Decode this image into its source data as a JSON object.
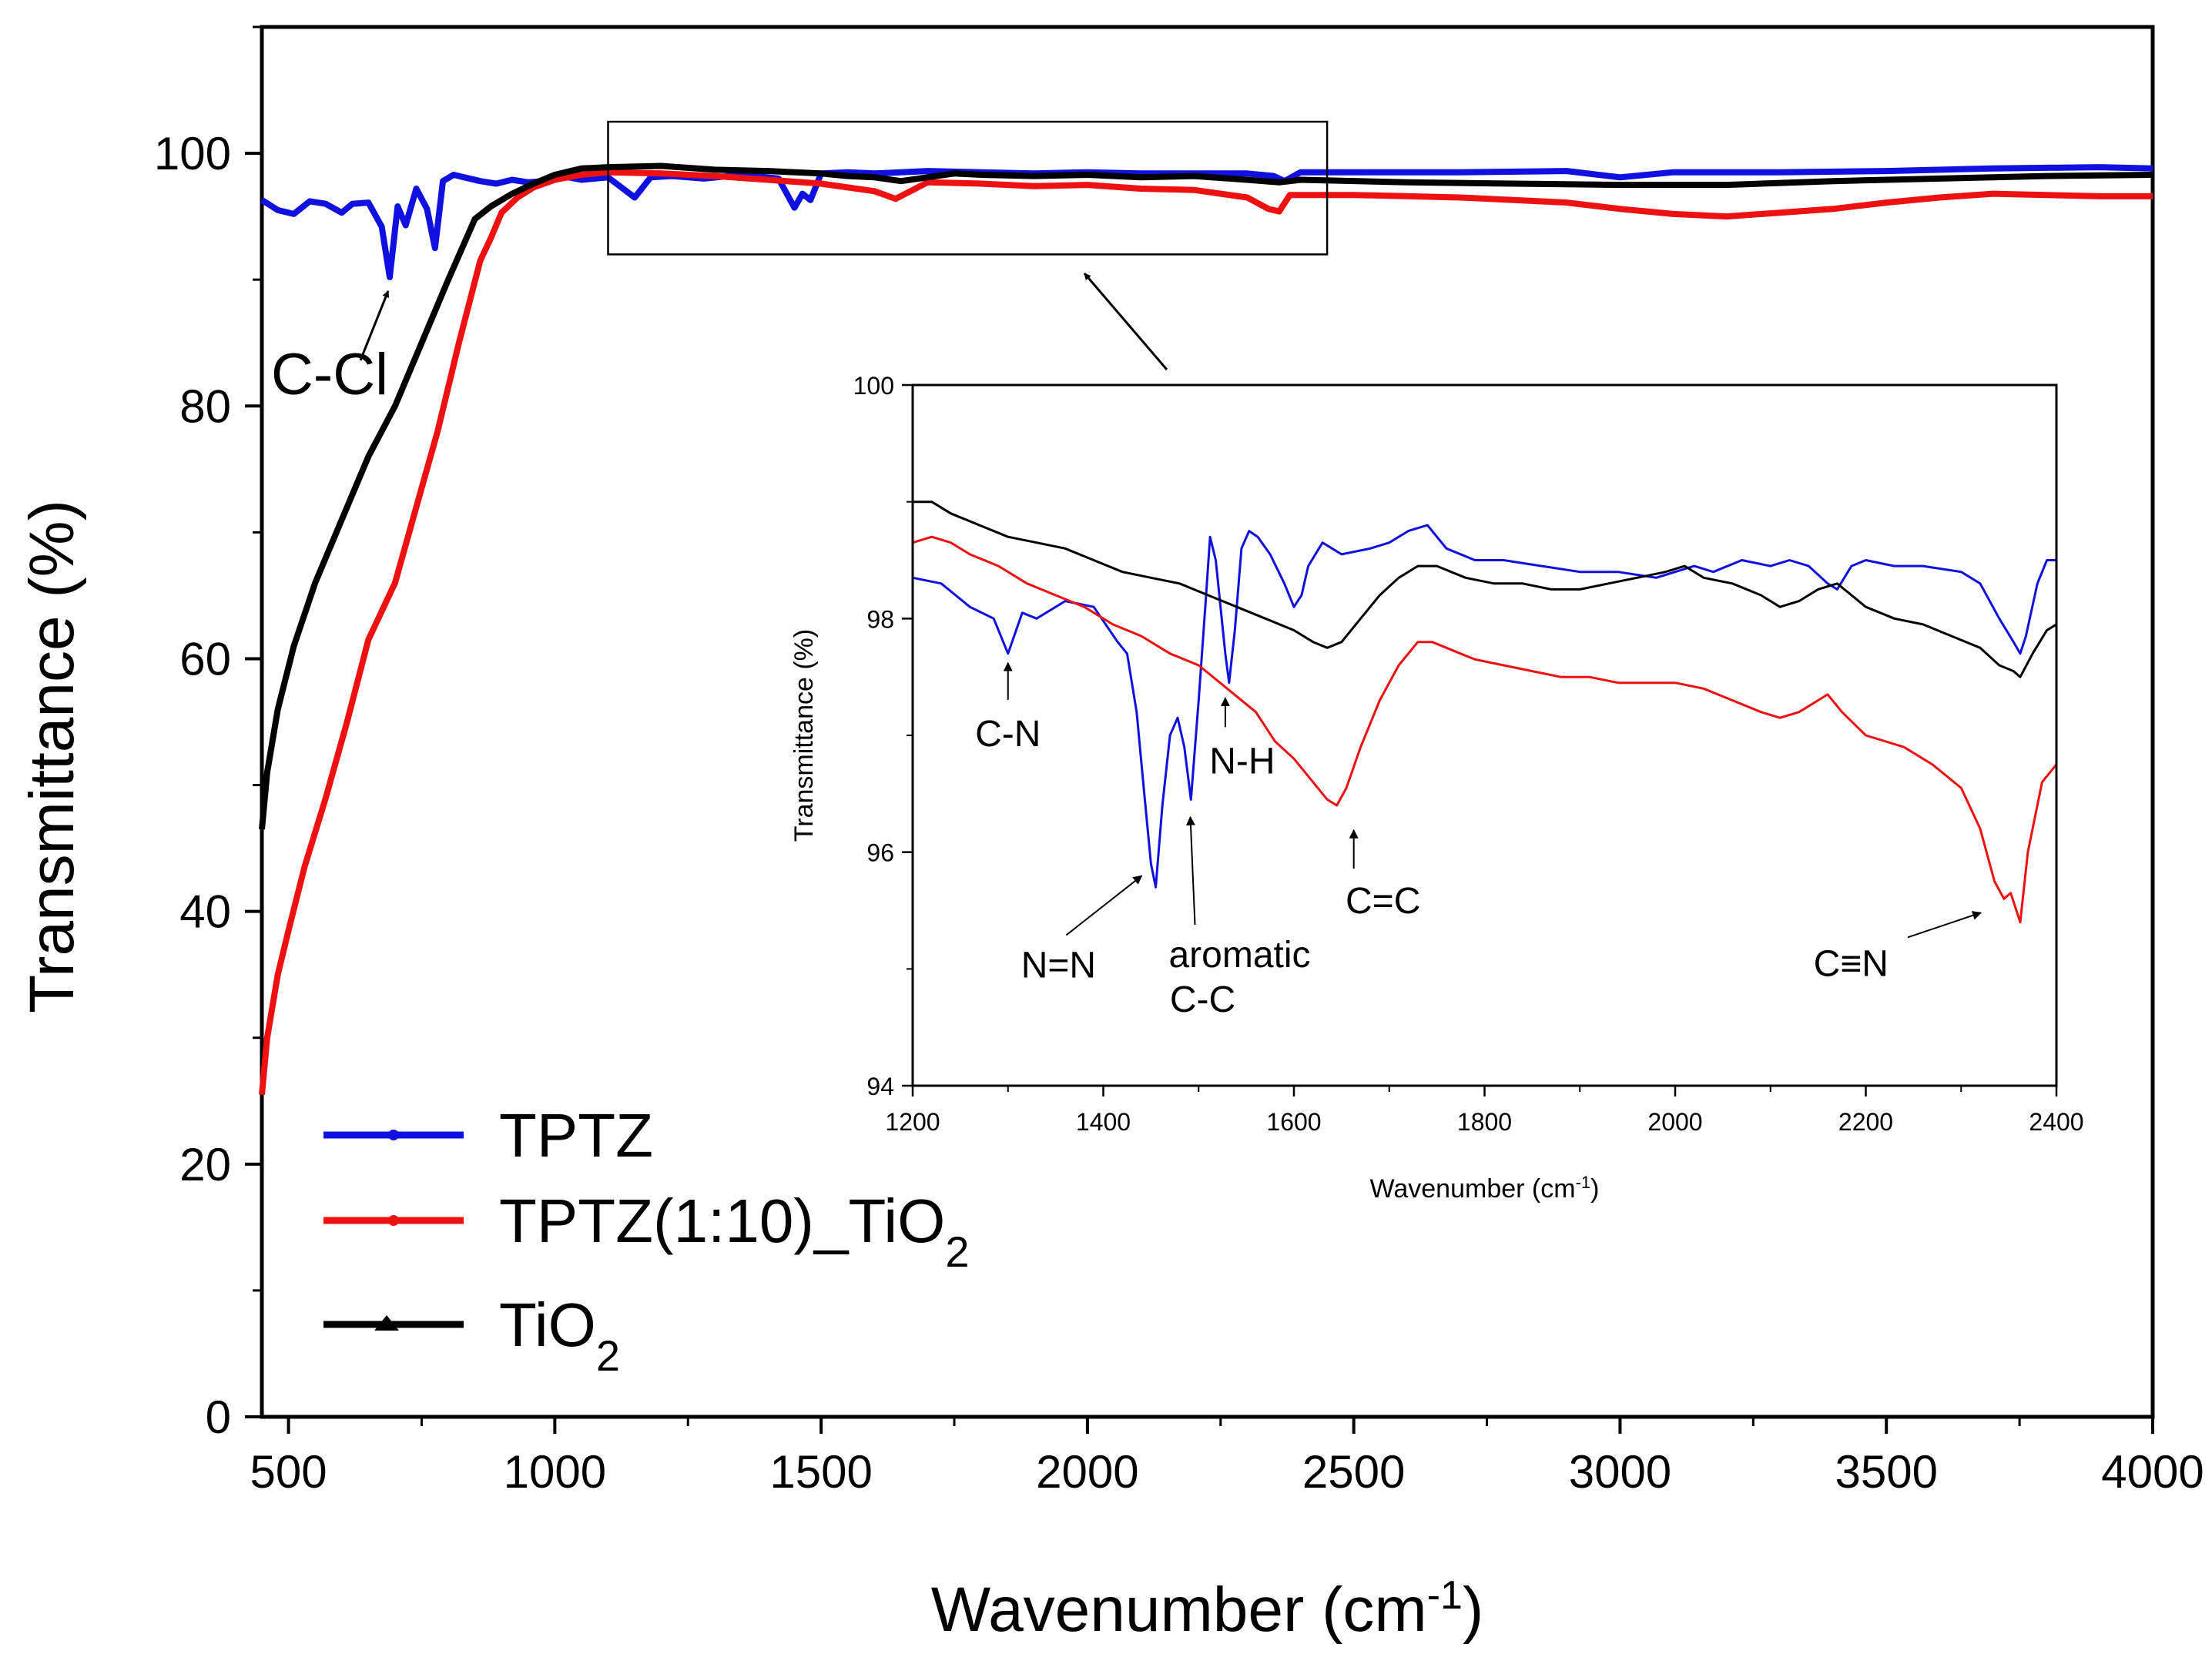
{
  "chart_data": [
    {
      "type": "line",
      "xlabel": "Wavenumber (cm",
      "xlabel_sup": "-1",
      "xlabel_close": ")",
      "ylabel": "Transmittance (%)",
      "xlim": [
        450,
        4000
      ],
      "ylim": [
        0,
        110
      ],
      "x_ticks": [
        500,
        1000,
        1500,
        2000,
        2500,
        3000,
        3500,
        4000
      ],
      "y_ticks": [
        0,
        20,
        40,
        60,
        80,
        100
      ],
      "series": [
        {
          "name": "TPTZ",
          "color": "#1010e0",
          "x": [
            450,
            480,
            510,
            540,
            570,
            600,
            620,
            650,
            675,
            690,
            705,
            720,
            740,
            760,
            775,
            790,
            810,
            830,
            860,
            890,
            920,
            950,
            980,
            1000,
            1050,
            1100,
            1150,
            1180,
            1220,
            1280,
            1350,
            1420,
            1450,
            1465,
            1480,
            1500,
            1550,
            1600,
            1700,
            1800,
            1900,
            2000,
            2100,
            2200,
            2300,
            2350,
            2370,
            2400,
            2500,
            2700,
            2900,
            3000,
            3100,
            3300,
            3500,
            3700,
            3900,
            4000
          ],
          "values": [
            96.3,
            95.5,
            95.2,
            96.2,
            96.0,
            95.3,
            96.0,
            96.1,
            94.2,
            90.2,
            95.8,
            94.3,
            97.2,
            95.6,
            92.5,
            97.8,
            98.3,
            98.1,
            97.8,
            97.6,
            97.9,
            97.7,
            97.8,
            98.3,
            97.9,
            98.1,
            96.5,
            98.1,
            98.2,
            98.0,
            98.3,
            98.0,
            95.7,
            96.8,
            96.3,
            98.4,
            98.5,
            98.4,
            98.6,
            98.5,
            98.4,
            98.5,
            98.4,
            98.4,
            98.4,
            98.2,
            97.8,
            98.5,
            98.5,
            98.5,
            98.6,
            98.1,
            98.5,
            98.5,
            98.6,
            98.8,
            98.9,
            98.8
          ]
        },
        {
          "name": "TPTZ(1:10)_TiO",
          "name_sub": "2",
          "color": "#ee1111",
          "x": [
            450,
            460,
            480,
            500,
            530,
            570,
            610,
            650,
            700,
            740,
            780,
            820,
            860,
            880,
            900,
            930,
            960,
            1000,
            1050,
            1100,
            1200,
            1300,
            1400,
            1500,
            1600,
            1640,
            1700,
            1800,
            1900,
            2000,
            2100,
            2200,
            2300,
            2340,
            2360,
            2380,
            2500,
            2700,
            2900,
            3000,
            3100,
            3200,
            3300,
            3400,
            3500,
            3600,
            3700,
            3800,
            3900,
            4000
          ],
          "values": [
            25.5,
            30,
            35,
            38.5,
            43.5,
            49,
            55,
            61.5,
            66,
            72,
            78,
            85,
            91.5,
            93.3,
            95.3,
            96.5,
            97.3,
            97.9,
            98.3,
            98.5,
            98.4,
            98.2,
            97.9,
            97.6,
            97.0,
            96.4,
            97.7,
            97.6,
            97.4,
            97.5,
            97.2,
            97.1,
            96.5,
            95.6,
            95.4,
            96.7,
            96.7,
            96.5,
            96.1,
            95.6,
            95.2,
            95.0,
            95.3,
            95.6,
            96.1,
            96.5,
            96.8,
            96.7,
            96.6,
            96.6
          ]
        },
        {
          "name": "TiO",
          "name_sub": "2",
          "color": "#000000",
          "x": [
            450,
            460,
            480,
            510,
            550,
            600,
            650,
            700,
            750,
            800,
            850,
            880,
            920,
            960,
            1000,
            1050,
            1100,
            1200,
            1300,
            1400,
            1500,
            1550,
            1600,
            1650,
            1750,
            1800,
            1900,
            2000,
            2100,
            2200,
            2300,
            2360,
            2400,
            2600,
            2800,
            3000,
            3200,
            3400,
            3600,
            3800,
            4000
          ],
          "values": [
            46.5,
            51,
            56,
            61,
            66,
            71,
            76,
            80,
            85,
            90,
            94.8,
            95.8,
            96.8,
            97.6,
            98.3,
            98.8,
            98.9,
            99.0,
            98.7,
            98.6,
            98.4,
            98.2,
            98.1,
            97.8,
            98.4,
            98.3,
            98.2,
            98.3,
            98.1,
            98.2,
            97.9,
            97.7,
            97.9,
            97.7,
            97.6,
            97.5,
            97.5,
            97.8,
            98.0,
            98.2,
            98.3
          ]
        }
      ],
      "annotations": [
        {
          "text": "C-Cl",
          "x": 690,
          "y": 90.2
        }
      ]
    },
    {
      "type": "line",
      "xlabel": "Wavenumber (cm",
      "xlabel_sup": "-1",
      "xlabel_close": ")",
      "ylabel": "Transmittance (%)",
      "xlim": [
        1200,
        2400
      ],
      "ylim": [
        94,
        100
      ],
      "x_ticks": [
        1200,
        1400,
        1600,
        1800,
        2000,
        2200,
        2400
      ],
      "y_ticks": [
        94,
        96,
        98,
        100
      ],
      "zoom_region": {
        "x": [
          1100,
          2450
        ],
        "y": [
          92,
          102.5
        ]
      },
      "series": [
        {
          "name": "TPTZ",
          "color": "#1010e0",
          "x": [
            1200,
            1230,
            1260,
            1285,
            1300,
            1315,
            1330,
            1360,
            1390,
            1415,
            1425,
            1435,
            1443,
            1450,
            1455,
            1462,
            1470,
            1478,
            1485,
            1492,
            1500,
            1507,
            1512,
            1518,
            1523,
            1528,
            1532,
            1538,
            1545,
            1553,
            1562,
            1575,
            1590,
            1600,
            1608,
            1615,
            1630,
            1650,
            1680,
            1700,
            1720,
            1740,
            1760,
            1790,
            1820,
            1860,
            1900,
            1940,
            1980,
            2000,
            2020,
            2040,
            2070,
            2100,
            2120,
            2140,
            2160,
            2170,
            2185,
            2200,
            2230,
            2260,
            2300,
            2320,
            2340,
            2355,
            2362,
            2368,
            2380,
            2390,
            2400
          ],
          "values": [
            98.35,
            98.3,
            98.1,
            98.0,
            97.7,
            98.05,
            98.0,
            98.15,
            98.1,
            97.8,
            97.7,
            97.2,
            96.5,
            95.9,
            95.7,
            96.4,
            97.0,
            97.15,
            96.9,
            96.45,
            97.3,
            98.1,
            98.7,
            98.5,
            98.1,
            97.7,
            97.45,
            97.9,
            98.6,
            98.75,
            98.7,
            98.55,
            98.3,
            98.1,
            98.2,
            98.45,
            98.65,
            98.55,
            98.6,
            98.65,
            98.75,
            98.8,
            98.6,
            98.5,
            98.5,
            98.45,
            98.4,
            98.4,
            98.35,
            98.4,
            98.45,
            98.4,
            98.5,
            98.45,
            98.5,
            98.45,
            98.3,
            98.25,
            98.45,
            98.5,
            98.45,
            98.45,
            98.4,
            98.3,
            98.0,
            97.8,
            97.7,
            97.85,
            98.3,
            98.5,
            98.5
          ]
        },
        {
          "name": "TPTZ(1:10)_TiO",
          "name_sub": "2",
          "color": "#ee1111",
          "x": [
            1200,
            1220,
            1240,
            1260,
            1290,
            1320,
            1350,
            1380,
            1410,
            1440,
            1470,
            1500,
            1530,
            1560,
            1580,
            1600,
            1620,
            1635,
            1645,
            1655,
            1670,
            1690,
            1710,
            1730,
            1745,
            1760,
            1790,
            1820,
            1850,
            1880,
            1910,
            1940,
            1970,
            2000,
            2030,
            2060,
            2090,
            2110,
            2130,
            2150,
            2160,
            2175,
            2200,
            2240,
            2270,
            2300,
            2320,
            2335,
            2345,
            2352,
            2362,
            2370,
            2385,
            2400
          ],
          "values": [
            98.65,
            98.7,
            98.65,
            98.55,
            98.45,
            98.3,
            98.2,
            98.1,
            97.95,
            97.85,
            97.7,
            97.6,
            97.4,
            97.2,
            96.95,
            96.8,
            96.6,
            96.45,
            96.4,
            96.55,
            96.9,
            97.3,
            97.6,
            97.8,
            97.8,
            97.75,
            97.65,
            97.6,
            97.55,
            97.5,
            97.5,
            97.45,
            97.45,
            97.45,
            97.4,
            97.3,
            97.2,
            97.15,
            97.2,
            97.3,
            97.35,
            97.2,
            97.0,
            96.9,
            96.75,
            96.55,
            96.2,
            95.75,
            95.6,
            95.65,
            95.4,
            96.0,
            96.6,
            96.75
          ]
        },
        {
          "name": "TiO",
          "name_sub": "2",
          "color": "#000000",
          "x": [
            1200,
            1220,
            1240,
            1270,
            1300,
            1330,
            1360,
            1390,
            1420,
            1450,
            1480,
            1510,
            1540,
            1570,
            1600,
            1620,
            1635,
            1650,
            1670,
            1690,
            1710,
            1730,
            1750,
            1780,
            1810,
            1840,
            1870,
            1900,
            1930,
            1960,
            1990,
            2010,
            2030,
            2060,
            2090,
            2110,
            2130,
            2150,
            2170,
            2200,
            2230,
            2260,
            2290,
            2320,
            2340,
            2355,
            2362,
            2375,
            2390,
            2400
          ],
          "values": [
            99.0,
            99.0,
            98.9,
            98.8,
            98.7,
            98.65,
            98.6,
            98.5,
            98.4,
            98.35,
            98.3,
            98.2,
            98.1,
            98.0,
            97.9,
            97.8,
            97.75,
            97.8,
            98.0,
            98.2,
            98.35,
            98.45,
            98.45,
            98.35,
            98.3,
            98.3,
            98.25,
            98.25,
            98.3,
            98.35,
            98.4,
            98.45,
            98.35,
            98.3,
            98.2,
            98.1,
            98.15,
            98.25,
            98.3,
            98.1,
            98.0,
            97.95,
            97.85,
            97.75,
            97.6,
            97.55,
            97.5,
            97.7,
            97.9,
            97.95
          ]
        }
      ],
      "annotations": [
        {
          "text": "C-N",
          "x": 1300,
          "y": 97.7
        },
        {
          "text": "N=N",
          "x": 1450,
          "y": 95.85
        },
        {
          "text": "aromatic",
          "text2": "C-C",
          "x": 1480,
          "y": 96.4
        },
        {
          "text": "N-H",
          "x": 1528,
          "y": 97.4
        },
        {
          "text": "C=C",
          "x": 1645,
          "y": 96.4
        },
        {
          "text": "C≡N",
          "x": 2345,
          "y": 95.6
        }
      ]
    }
  ]
}
